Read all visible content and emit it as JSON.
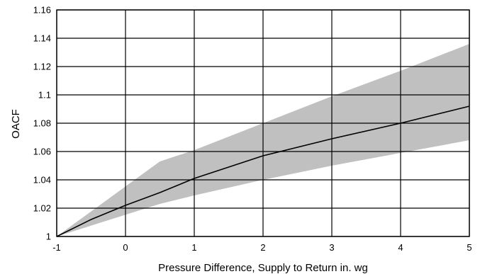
{
  "chart_data": {
    "type": "area",
    "title": "",
    "xlabel": "Pressure Difference, Supply to Return in. wg",
    "ylabel": "OACF",
    "xlim": [
      -1,
      5
    ],
    "ylim": [
      1,
      1.16
    ],
    "x_ticks": [
      "-1",
      "0",
      "1",
      "2",
      "3",
      "4",
      "5"
    ],
    "y_ticks": [
      "1",
      "1.02",
      "1.04",
      "1.06",
      "1.08",
      "1.1",
      "1.12",
      "1.14",
      "1.16"
    ],
    "grid": true,
    "colors": {
      "band": "#c0c0c0",
      "line": "#000000",
      "grid": "#000000"
    },
    "series": [
      {
        "kind": "line",
        "x": [
          -1,
          -0.5,
          0,
          0.5,
          1,
          1.5,
          2,
          3,
          4,
          5
        ],
        "y": [
          1.0,
          1.012,
          1.022,
          1.031,
          1.041,
          1.049,
          1.057,
          1.069,
          1.08,
          1.092
        ]
      },
      {
        "kind": "band",
        "x": [
          -1,
          0.5,
          1,
          2,
          3,
          4,
          5
        ],
        "upper": [
          1.0,
          1.053,
          1.061,
          1.08,
          1.099,
          1.117,
          1.136
        ],
        "lower": [
          1.0,
          1.023,
          1.029,
          1.04,
          1.05,
          1.059,
          1.068
        ]
      }
    ]
  }
}
